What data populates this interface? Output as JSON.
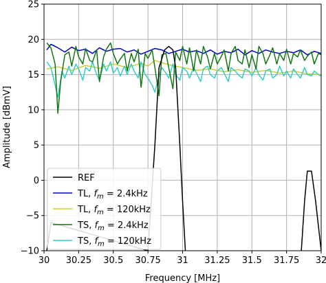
{
  "chart_data": {
    "type": "line",
    "xlabel": "Frequency [MHz]",
    "ylabel": "Amplitude [dBmV]",
    "xlim": [
      30,
      32
    ],
    "ylim": [
      -10,
      25
    ],
    "xticks": [
      30,
      30.25,
      30.5,
      30.75,
      31,
      31.25,
      31.5,
      31.75,
      32
    ],
    "xtick_labels": [
      "30",
      "30.25",
      "30.5",
      "30.75",
      "31",
      "31.25",
      "31.5",
      "31.75",
      "32"
    ],
    "yticks": [
      -10,
      -5,
      0,
      5,
      10,
      15,
      20,
      25
    ],
    "ytick_labels": [
      "−10",
      "−5",
      "0",
      "5",
      "10",
      "15",
      "20",
      "25"
    ],
    "grid": true,
    "legend_position": "lower-left",
    "series": [
      {
        "name": "REF",
        "legend": {
          "prefix": "REF",
          "sym": "",
          "sub": "",
          "value": ""
        },
        "color": "#000000",
        "x": [
          30.02,
          30.05,
          30.75,
          30.8,
          30.83,
          30.87,
          30.9,
          30.93,
          30.95,
          30.98,
          31.0,
          31.02,
          31.05,
          31.85,
          31.88,
          31.9,
          31.93,
          31.96,
          32.0
        ],
        "y": [
          -10,
          -6,
          -10,
          5,
          16,
          18.5,
          19,
          18.5,
          16,
          5,
          -3,
          -10,
          -12,
          -12,
          -3,
          1.3,
          1.3,
          -3,
          -10
        ]
      },
      {
        "name": "TL, fm = 2.4kHz",
        "legend": {
          "prefix": "TL, ",
          "sym": "f",
          "sub": "m",
          "value": " = 2.4kHz"
        },
        "color": "#0000cc",
        "x": [
          30.02,
          30.05,
          30.1,
          30.15,
          30.2,
          30.25,
          30.3,
          30.35,
          30.4,
          30.45,
          30.5,
          30.55,
          30.6,
          30.65,
          30.7,
          30.75,
          30.8,
          30.85,
          30.9,
          30.95,
          31.0,
          31.05,
          31.1,
          31.15,
          31.2,
          31.25,
          31.3,
          31.35,
          31.4,
          31.45,
          31.5,
          31.55,
          31.6,
          31.65,
          31.7,
          31.75,
          31.8,
          31.85,
          31.9,
          31.95,
          32.0
        ],
        "y": [
          18.5,
          19.3,
          18.8,
          18.2,
          18.9,
          18.4,
          18.6,
          18.0,
          18.8,
          18.3,
          18.6,
          18.7,
          18.2,
          18.5,
          17.9,
          18.3,
          18.7,
          18.5,
          18.0,
          18.3,
          18.6,
          18.2,
          18.4,
          18.0,
          18.5,
          17.9,
          18.3,
          18.1,
          18.6,
          17.8,
          18.4,
          18.0,
          18.5,
          18.2,
          18.0,
          18.3,
          18.1,
          18.5,
          17.8,
          18.3,
          18.0
        ]
      },
      {
        "name": "TL, fm = 120kHz",
        "legend": {
          "prefix": "TL, ",
          "sym": "f",
          "sub": "m",
          "value": " = 120kHz"
        },
        "color": "#cccc33",
        "x": [
          30.02,
          30.1,
          30.2,
          30.3,
          30.4,
          30.5,
          30.6,
          30.7,
          30.75,
          30.8,
          30.9,
          31.0,
          31.1,
          31.2,
          31.3,
          31.4,
          31.5,
          31.6,
          31.7,
          31.8,
          31.9,
          32.0
        ],
        "y": [
          15.8,
          16.1,
          15.6,
          16.3,
          15.9,
          16.5,
          16.0,
          16.6,
          16.2,
          17.0,
          16.4,
          16.0,
          15.6,
          15.8,
          15.4,
          15.7,
          15.3,
          15.6,
          15.2,
          15.5,
          15.1,
          15.0
        ]
      },
      {
        "name": "TS, fm = 2.4kHz",
        "legend": {
          "prefix": "TS, ",
          "sym": "f",
          "sub": "m",
          "value": " = 2.4kHz"
        },
        "color": "#117711",
        "x": [
          30.02,
          30.05,
          30.08,
          30.1,
          30.12,
          30.15,
          30.18,
          30.2,
          30.23,
          30.25,
          30.28,
          30.3,
          30.33,
          30.35,
          30.38,
          30.4,
          30.43,
          30.45,
          30.48,
          30.5,
          30.53,
          30.55,
          30.58,
          30.6,
          30.63,
          30.65,
          30.68,
          30.7,
          30.73,
          30.75,
          30.78,
          30.8,
          30.83,
          30.85,
          30.88,
          30.9,
          30.93,
          30.95,
          30.98,
          31.0,
          31.03,
          31.05,
          31.08,
          31.1,
          31.13,
          31.15,
          31.18,
          31.2,
          31.23,
          31.25,
          31.28,
          31.3,
          31.33,
          31.35,
          31.38,
          31.4,
          31.43,
          31.45,
          31.48,
          31.5,
          31.53,
          31.55,
          31.58,
          31.6,
          31.63,
          31.65,
          31.68,
          31.7,
          31.73,
          31.75,
          31.78,
          31.8,
          31.83,
          31.85,
          31.88,
          31.9,
          31.93,
          31.95,
          31.98,
          32.0
        ],
        "y": [
          19.5,
          18.8,
          16.5,
          9.5,
          14.0,
          17.8,
          18.2,
          16.2,
          19.0,
          17.5,
          16.5,
          18.7,
          17.0,
          16.8,
          18.5,
          14.0,
          17.5,
          18.6,
          19.5,
          18.0,
          16.5,
          17.2,
          18.0,
          15.5,
          18.0,
          16.8,
          18.6,
          13.2,
          18.0,
          17.3,
          18.5,
          16.0,
          12.0,
          17.8,
          18.0,
          16.0,
          13.0,
          18.2,
          17.0,
          19.0,
          16.5,
          18.8,
          15.5,
          18.5,
          16.5,
          19.0,
          17.5,
          15.8,
          18.0,
          16.5,
          17.6,
          18.5,
          15.5,
          18.0,
          19.0,
          17.0,
          16.5,
          18.5,
          16.0,
          17.8,
          15.8,
          19.0,
          18.0,
          16.5,
          17.8,
          18.8,
          16.5,
          18.0,
          17.0,
          18.6,
          16.5,
          18.0,
          17.5,
          18.5,
          17.0,
          17.6,
          18.2,
          16.5,
          18.0,
          17.8
        ]
      },
      {
        "name": "TS, fm = 120kHz",
        "legend": {
          "prefix": "TS, ",
          "sym": "f",
          "sub": "m",
          "value": " = 120kHz"
        },
        "color": "#33cccc",
        "x": [
          30.02,
          30.05,
          30.08,
          30.1,
          30.13,
          30.15,
          30.18,
          30.2,
          30.23,
          30.25,
          30.28,
          30.3,
          30.33,
          30.35,
          30.38,
          30.4,
          30.43,
          30.45,
          30.48,
          30.5,
          30.53,
          30.55,
          30.58,
          30.6,
          30.63,
          30.65,
          30.68,
          30.7,
          30.73,
          30.75,
          30.78,
          30.8,
          30.83,
          30.85,
          30.88,
          30.9,
          30.93,
          30.95,
          30.98,
          31.0,
          31.03,
          31.05,
          31.08,
          31.1,
          31.13,
          31.15,
          31.18,
          31.2,
          31.23,
          31.25,
          31.28,
          31.3,
          31.33,
          31.35,
          31.38,
          31.4,
          31.43,
          31.45,
          31.48,
          31.5,
          31.53,
          31.55,
          31.58,
          31.6,
          31.63,
          31.65,
          31.68,
          31.7,
          31.73,
          31.75,
          31.78,
          31.8,
          31.83,
          31.85,
          31.88,
          31.9,
          31.93,
          31.95,
          31.98,
          32.0
        ],
        "y": [
          16.8,
          16.0,
          13.5,
          11.8,
          15.5,
          14.5,
          16.2,
          15.0,
          16.5,
          15.8,
          14.2,
          16.0,
          15.5,
          16.8,
          15.0,
          14.2,
          16.5,
          15.5,
          16.8,
          15.2,
          16.0,
          14.8,
          16.2,
          15.0,
          16.5,
          15.5,
          14.5,
          16.8,
          15.0,
          14.5,
          13.5,
          12.5,
          14.8,
          16.0,
          15.2,
          14.5,
          16.5,
          15.0,
          14.2,
          16.0,
          15.5,
          14.5,
          16.0,
          15.2,
          14.0,
          15.8,
          16.2,
          15.0,
          14.5,
          15.5,
          16.0,
          15.2,
          14.0,
          16.0,
          15.5,
          15.0,
          14.5,
          15.8,
          15.5,
          14.8,
          16.0,
          15.0,
          14.2,
          15.5,
          15.8,
          14.5,
          15.0,
          16.2,
          14.8,
          15.5,
          14.5,
          15.8,
          15.0,
          14.5,
          16.0,
          15.0,
          14.8,
          15.5,
          15.0,
          14.8
        ]
      }
    ]
  }
}
